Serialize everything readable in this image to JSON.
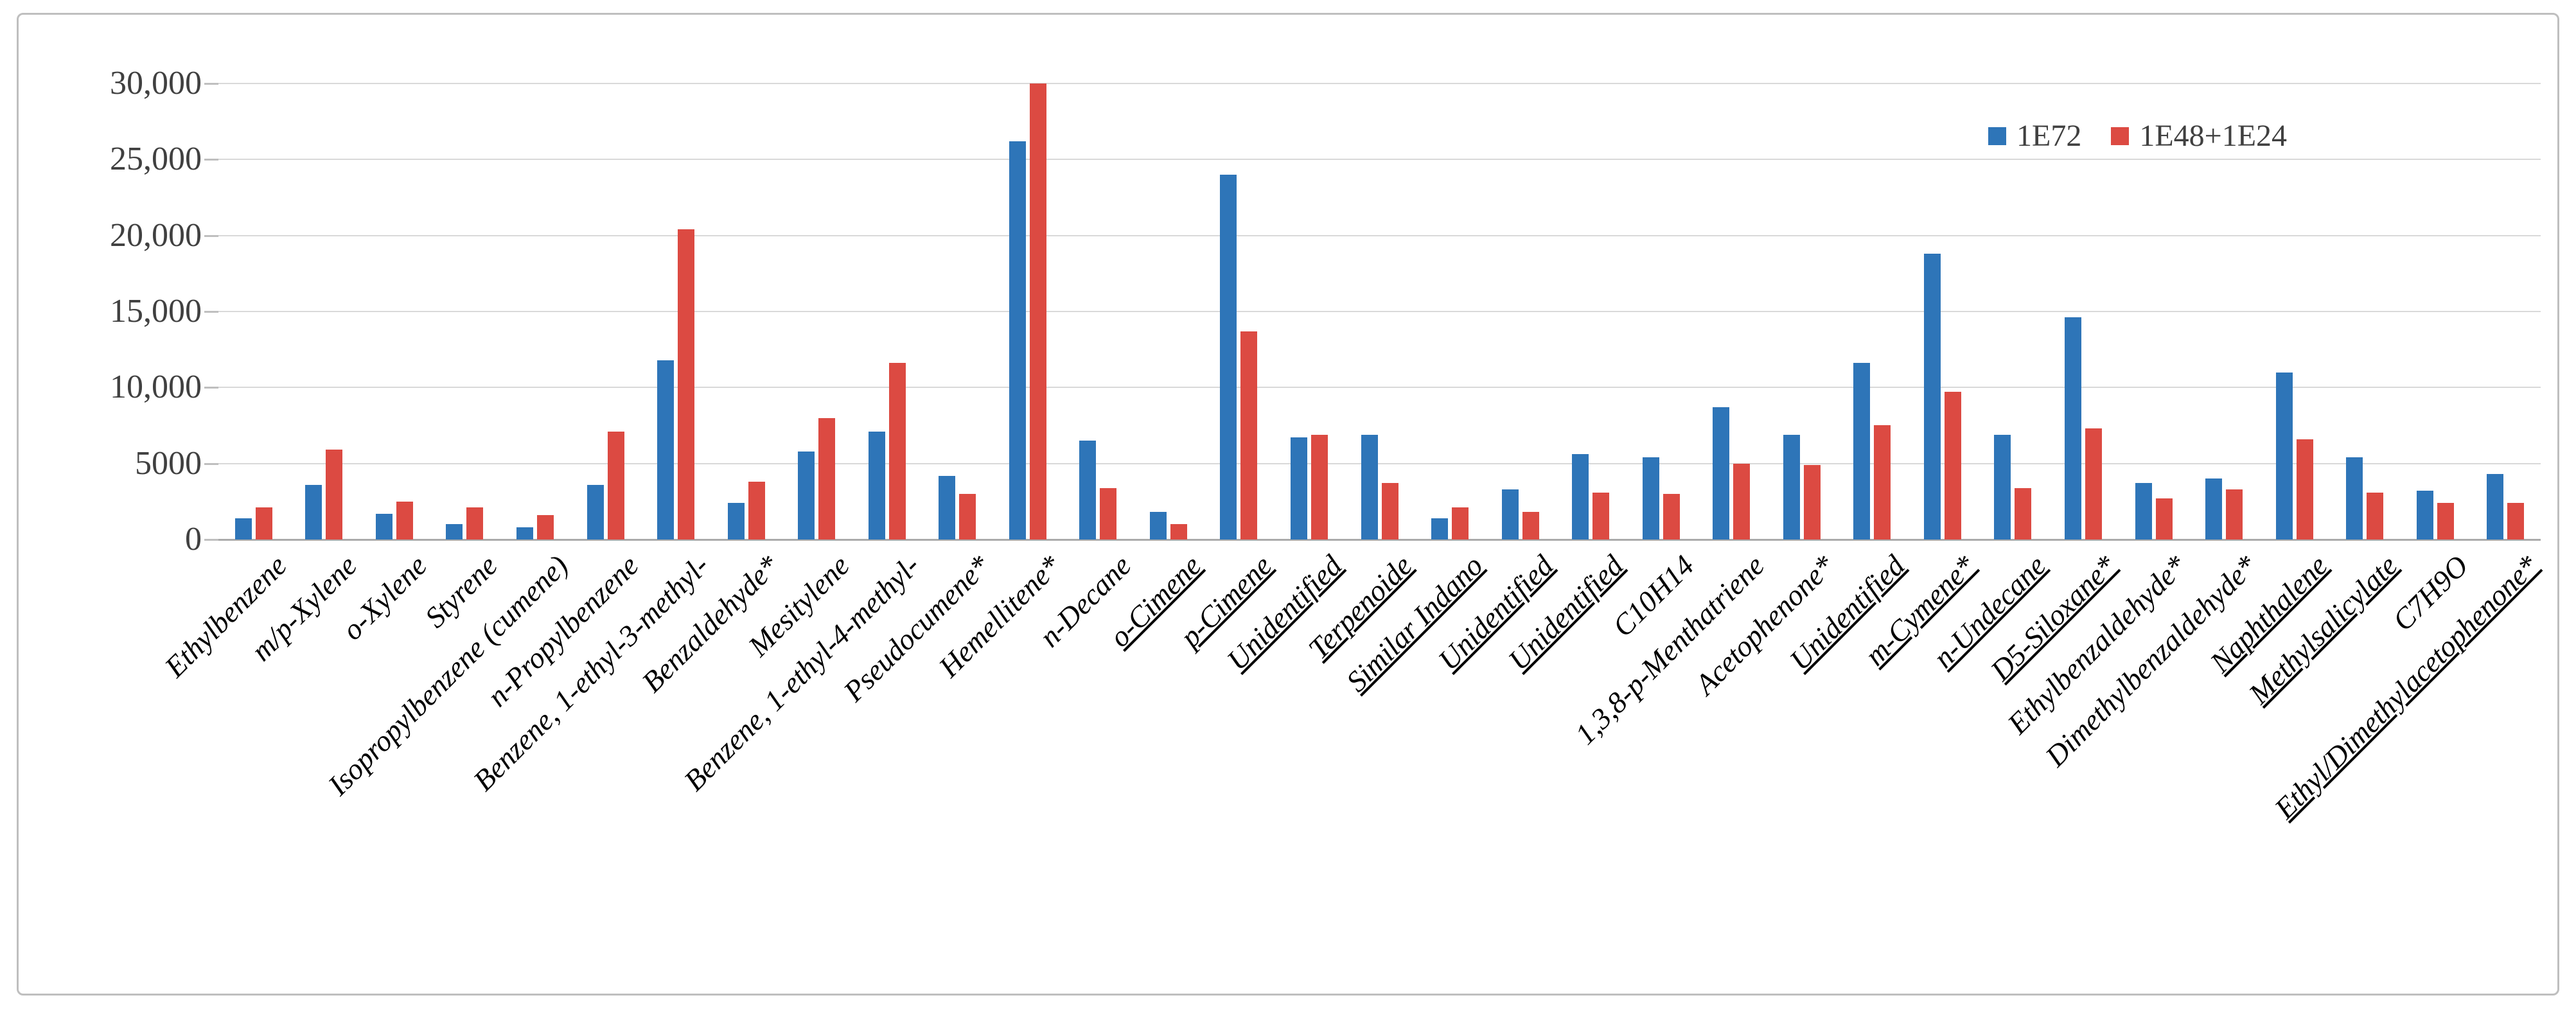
{
  "chart_data": {
    "type": "bar",
    "title": "",
    "xlabel": "",
    "ylabel": "",
    "ylim": [
      0,
      30000
    ],
    "ytick_step": 5000,
    "ytick_labels": [
      "0",
      "5000",
      "10,000",
      "15,000",
      "20,000",
      "25,000",
      "30,000"
    ],
    "grid": "horizontal",
    "legend_position": "top-right",
    "categories": [
      "Ethylbenzene",
      "m/p-Xylene",
      "o-Xylene",
      "Styrene",
      "Isopropylbenzene (cumene)",
      "n-Propylbenzene",
      "Benzene, 1-ethyl-3-methyl-",
      "Benzaldehyde*",
      "Mesitylene",
      "Benzene, 1-ethyl-4-methyl-",
      "Pseudocumene*",
      "Hemellitene*",
      "n-Decane",
      "o-Cimene",
      "p-Cimene",
      "Unidentified",
      "Terpenoide",
      "Similar Indano",
      "Unidentified",
      "Unidentified",
      "C10H14",
      "1,3,8-p-Menthatriene",
      "Acetophenone*",
      "Unidentified",
      "m-Cymene*",
      "n-Undecane",
      "D5-Siloxane*",
      "Ethylbenzaldehyde*",
      "Dimethylbenzaldehyde*",
      "Naphthalene",
      "Methylsalicylate",
      "C7H9O",
      "Ethyl/Dimethylacetophenone*"
    ],
    "underlined_category_indices": [
      13,
      14,
      15,
      16,
      17,
      18,
      19,
      23,
      24,
      25,
      26,
      29,
      30,
      32
    ],
    "series": [
      {
        "name": "1E72",
        "color": "#2E75B8",
        "values": [
          1400,
          3600,
          1700,
          1000,
          800,
          3600,
          11800,
          2400,
          5800,
          7100,
          4200,
          26200,
          6500,
          1800,
          24000,
          6700,
          6900,
          1400,
          3300,
          5600,
          5400,
          8700,
          6900,
          11600,
          18800,
          6900,
          14600,
          3700,
          4000,
          11000,
          5400,
          3200,
          4300
        ]
      },
      {
        "name": "1E48+1E24",
        "color": "#DC4A42",
        "values": [
          2100,
          5900,
          2500,
          2100,
          1600,
          7100,
          20400,
          3800,
          8000,
          11600,
          3000,
          30000,
          3400,
          1000,
          13700,
          6900,
          3700,
          2100,
          1800,
          3100,
          3000,
          5000,
          4900,
          7500,
          9700,
          3400,
          7300,
          2700,
          3300,
          6600,
          3100,
          2400,
          2400
        ]
      }
    ]
  },
  "legend": {
    "items": [
      {
        "label": "1E72"
      },
      {
        "label": "1E48+1E24"
      }
    ]
  },
  "colors": {
    "gridline": "#D9D9D9",
    "axis_line": "#ABABAB",
    "y_label_text": "#404040",
    "x_label_text": "#000000"
  }
}
